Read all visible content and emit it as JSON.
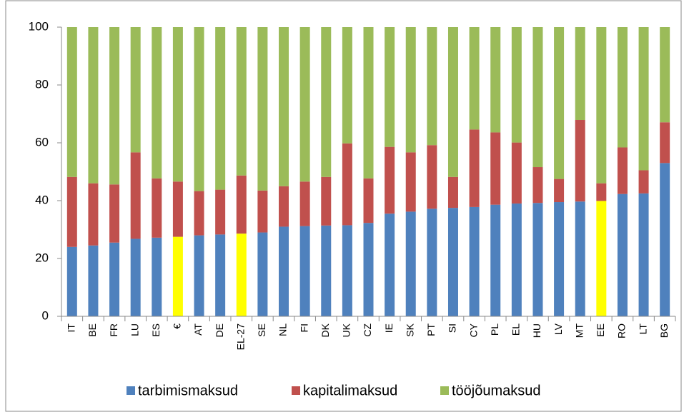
{
  "chart_data": {
    "type": "stacked_bar",
    "categories": [
      "IT",
      "BE",
      "FR",
      "LU",
      "ES",
      "€",
      "AT",
      "DE",
      "EL-27",
      "SE",
      "NL",
      "FI",
      "DK",
      "UK",
      "CZ",
      "IE",
      "SK",
      "PT",
      "SI",
      "CY",
      "PL",
      "EL",
      "HU",
      "LV",
      "MT",
      "EE",
      "RO",
      "LT",
      "BG"
    ],
    "series": [
      {
        "name": "tarbimismaksud",
        "color": "#4f81bd",
        "colors": [
          "#4f81bd",
          "#4f81bd",
          "#4f81bd",
          "#4f81bd",
          "#4f81bd",
          "#ffff00",
          "#4f81bd",
          "#4f81bd",
          "#ffff00",
          "#4f81bd",
          "#4f81bd",
          "#4f81bd",
          "#4f81bd",
          "#4f81bd",
          "#4f81bd",
          "#4f81bd",
          "#4f81bd",
          "#4f81bd",
          "#4f81bd",
          "#4f81bd",
          "#4f81bd",
          "#4f81bd",
          "#4f81bd",
          "#4f81bd",
          "#4f81bd",
          "#ffff00",
          "#4f81bd",
          "#4f81bd",
          "#4f81bd"
        ],
        "values": [
          24,
          24.5,
          25.5,
          26.8,
          27.2,
          27.5,
          28,
          28.3,
          28.6,
          29,
          31,
          31.2,
          31.4,
          31.5,
          32.3,
          35.5,
          36.2,
          37.2,
          37.5,
          37.8,
          38.6,
          39,
          39.2,
          39.5,
          39.7,
          39.9,
          42.3,
          42.5,
          53
        ]
      },
      {
        "name": "kapitalimaksud",
        "color": "#c0504d",
        "values": [
          24.2,
          21.5,
          20.1,
          29.9,
          20.5,
          19.1,
          15.3,
          15.5,
          20.1,
          14.5,
          14,
          15.4,
          16.8,
          28.3,
          15.4,
          23.1,
          20.5,
          22,
          10.7,
          26.8,
          25,
          21.1,
          12.4,
          8,
          28.2,
          6.1,
          16.1,
          8,
          14.1
        ]
      },
      {
        "name": "tööjõumaksud",
        "color": "#9bbb59",
        "values": [
          51.8,
          54,
          54.4,
          43.3,
          52.3,
          53.4,
          56.7,
          56.2,
          51.3,
          56.5,
          55,
          53.4,
          51.8,
          40.2,
          52.3,
          41.4,
          43.3,
          40.8,
          51.8,
          35.4,
          36.4,
          39.9,
          48.4,
          52.5,
          32.1,
          54,
          41.6,
          49.5,
          32.9
        ]
      }
    ],
    "ylim": [
      0,
      100
    ],
    "yticks": [
      0,
      20,
      40,
      60,
      80,
      100
    ],
    "grid": false,
    "legend": "bottom"
  }
}
